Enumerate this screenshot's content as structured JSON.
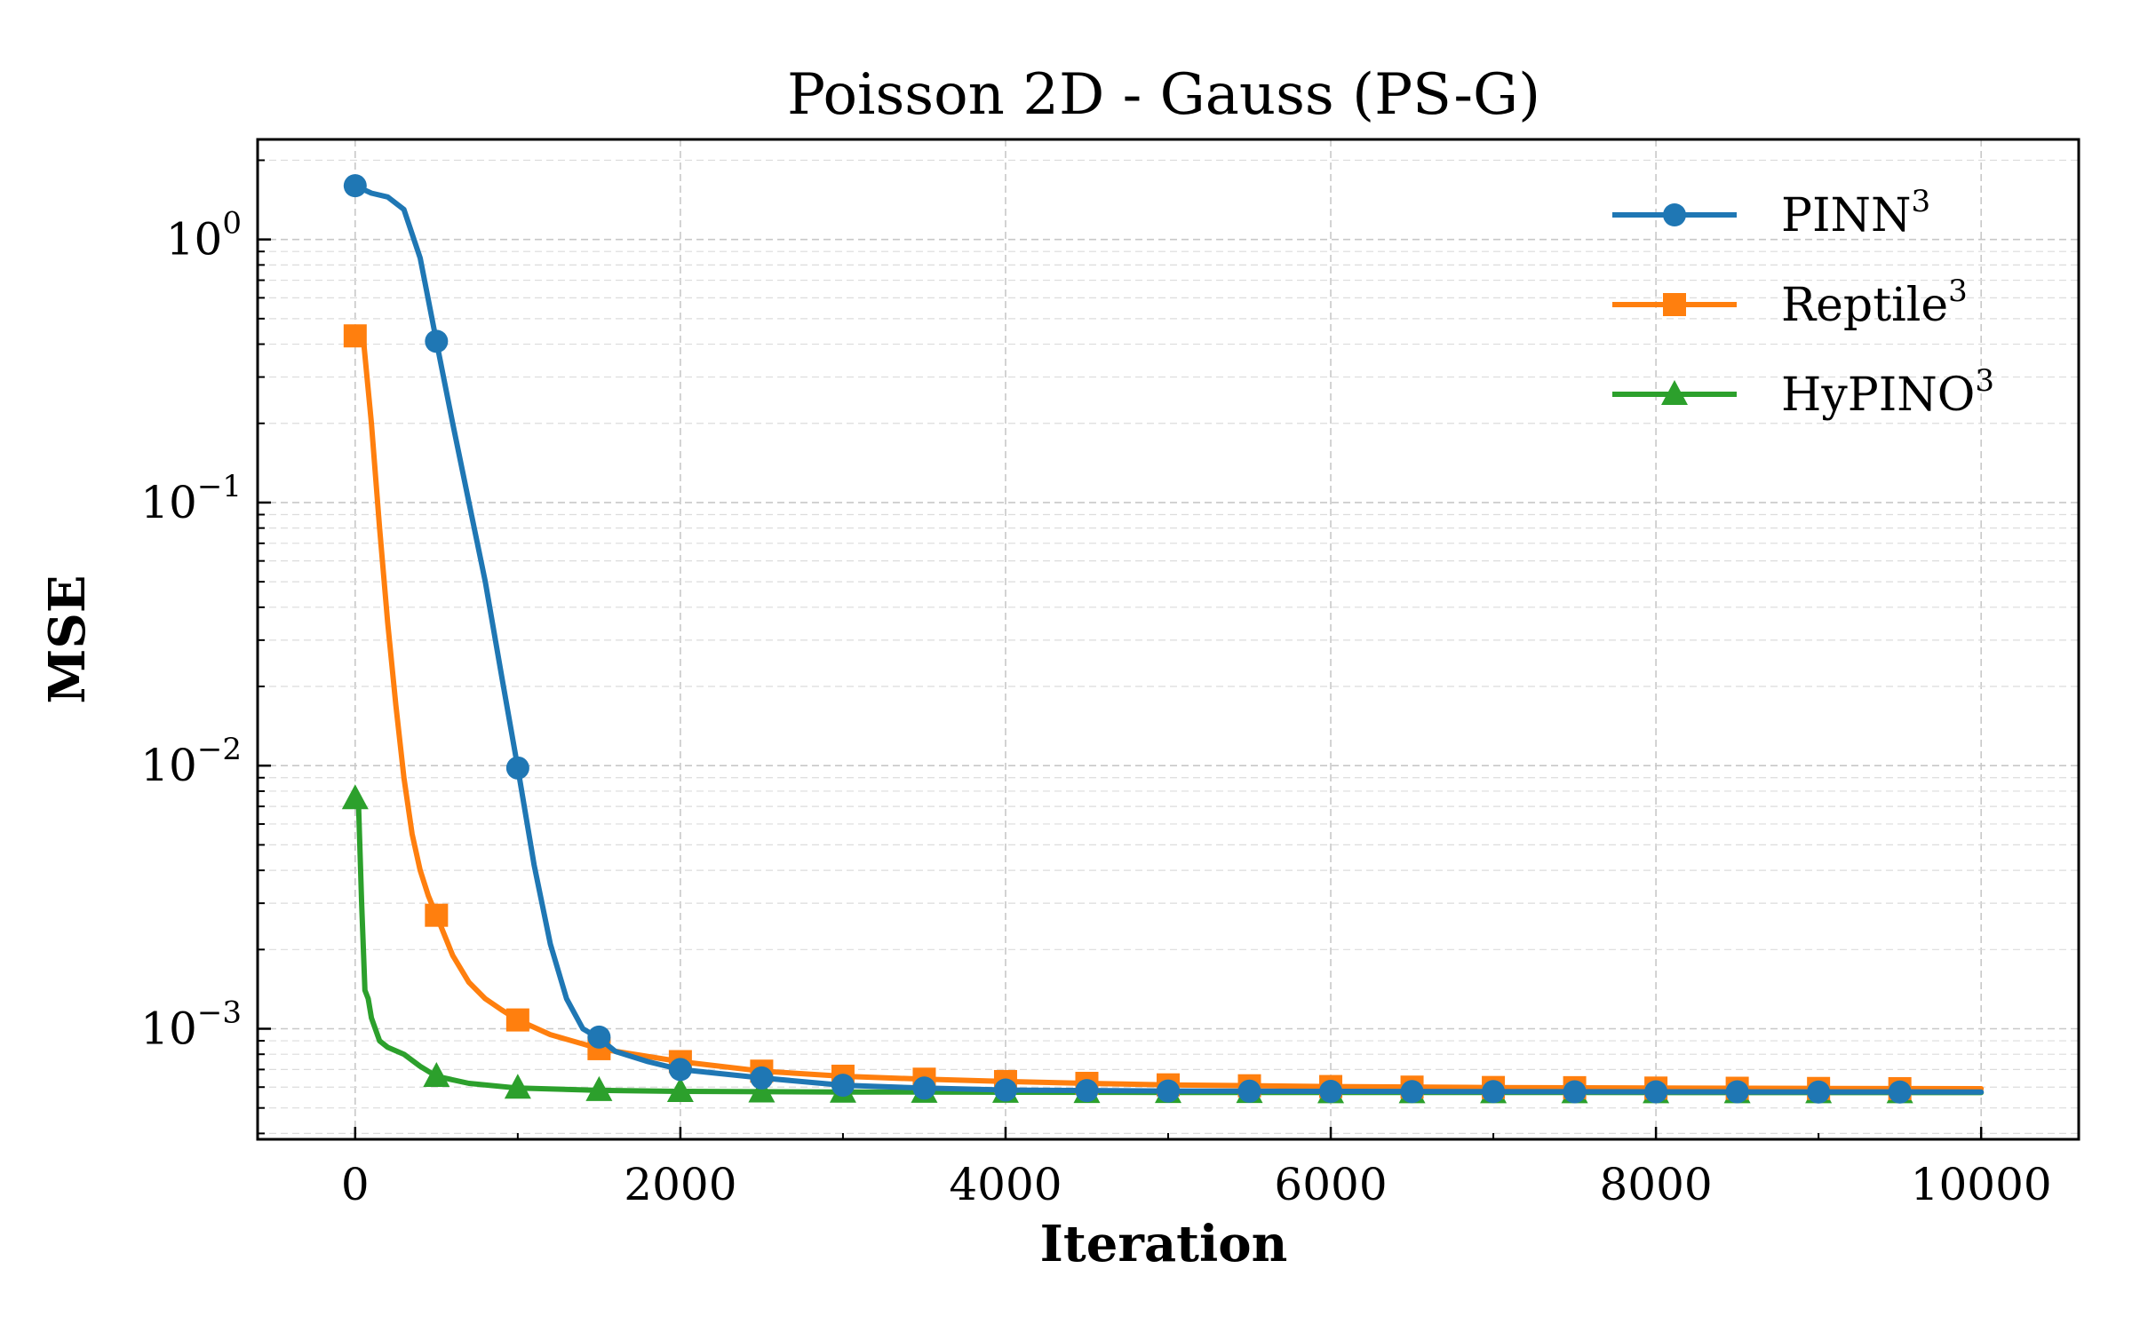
{
  "chart_data": {
    "type": "line",
    "title": "Poisson 2D - Gauss (PS-G)",
    "xlabel": "Iteration",
    "ylabel": "MSE",
    "xlim": [
      -600,
      10600
    ],
    "ylim": [
      0.00038,
      2.4
    ],
    "yscale": "log",
    "grid": true,
    "legend": {
      "placement": "top-right"
    },
    "x_ticks": [
      {
        "value": 0,
        "label": "0"
      },
      {
        "value": 2000,
        "label": "2000"
      },
      {
        "value": 4000,
        "label": "4000"
      },
      {
        "value": 6000,
        "label": "6000"
      },
      {
        "value": 8000,
        "label": "8000"
      },
      {
        "value": 10000,
        "label": "10000"
      }
    ],
    "y_ticks": [
      {
        "value": 1,
        "base": "10",
        "exp": "0"
      },
      {
        "value": 0.1,
        "base": "10",
        "exp": "−1"
      },
      {
        "value": 0.01,
        "base": "10",
        "exp": "−2"
      },
      {
        "value": 0.001,
        "base": "10",
        "exp": "−3"
      }
    ],
    "series": [
      {
        "name": "PINN",
        "name_sup": "3",
        "color": "#1f77b4",
        "marker": "circle",
        "line": [
          [
            0,
            1.6
          ],
          [
            100,
            1.5
          ],
          [
            200,
            1.45
          ],
          [
            300,
            1.3
          ],
          [
            400,
            0.85
          ],
          [
            500,
            0.41
          ],
          [
            600,
            0.2
          ],
          [
            700,
            0.1
          ],
          [
            800,
            0.05
          ],
          [
            900,
            0.022
          ],
          [
            1000,
            0.0098
          ],
          [
            1100,
            0.0042
          ],
          [
            1200,
            0.0021
          ],
          [
            1300,
            0.0013
          ],
          [
            1400,
            0.001
          ],
          [
            1500,
            0.00092
          ],
          [
            1600,
            0.00082
          ],
          [
            1800,
            0.00075
          ],
          [
            2000,
            0.0007
          ],
          [
            2500,
            0.00065
          ],
          [
            3000,
            0.00061
          ],
          [
            3500,
            0.000595
          ],
          [
            4000,
            0.000585
          ],
          [
            5000,
            0.00058
          ],
          [
            6000,
            0.000578
          ],
          [
            8000,
            0.000576
          ],
          [
            10000,
            0.000575
          ]
        ],
        "markers": [
          [
            0,
            1.6
          ],
          [
            500,
            0.41
          ],
          [
            1000,
            0.0098
          ],
          [
            1500,
            0.00093
          ],
          [
            2000,
            0.0007
          ],
          [
            2500,
            0.00065
          ],
          [
            3000,
            0.00061
          ],
          [
            3500,
            0.000595
          ],
          [
            4000,
            0.000585
          ],
          [
            4500,
            0.000582
          ],
          [
            5000,
            0.00058
          ],
          [
            5500,
            0.000579
          ],
          [
            6000,
            0.000578
          ],
          [
            6500,
            0.000577
          ],
          [
            7000,
            0.000577
          ],
          [
            7500,
            0.000576
          ],
          [
            8000,
            0.000576
          ],
          [
            8500,
            0.000576
          ],
          [
            9000,
            0.000575
          ],
          [
            9500,
            0.000575
          ]
        ]
      },
      {
        "name": "Reptile",
        "name_sup": "3",
        "color": "#ff7f0e",
        "marker": "square",
        "line": [
          [
            0,
            0.43
          ],
          [
            50,
            0.42
          ],
          [
            100,
            0.2
          ],
          [
            150,
            0.08
          ],
          [
            200,
            0.035
          ],
          [
            250,
            0.017
          ],
          [
            300,
            0.009
          ],
          [
            350,
            0.0055
          ],
          [
            400,
            0.004
          ],
          [
            450,
            0.0032
          ],
          [
            500,
            0.0027
          ],
          [
            600,
            0.0019
          ],
          [
            700,
            0.0015
          ],
          [
            800,
            0.0013
          ],
          [
            900,
            0.00118
          ],
          [
            1000,
            0.00108
          ],
          [
            1200,
            0.00095
          ],
          [
            1500,
            0.00084
          ],
          [
            2000,
            0.00075
          ],
          [
            2500,
            0.00069
          ],
          [
            3000,
            0.00066
          ],
          [
            3500,
            0.000643
          ],
          [
            4000,
            0.00063
          ],
          [
            4500,
            0.00062
          ],
          [
            5000,
            0.000612
          ],
          [
            6000,
            0.000603
          ],
          [
            7000,
            0.000598
          ],
          [
            8000,
            0.000595
          ],
          [
            9000,
            0.000593
          ],
          [
            10000,
            0.000592
          ]
        ],
        "markers": [
          [
            0,
            0.43
          ],
          [
            500,
            0.0027
          ],
          [
            1000,
            0.00108
          ],
          [
            1500,
            0.00084
          ],
          [
            2000,
            0.00075
          ],
          [
            2500,
            0.00069
          ],
          [
            3000,
            0.00066
          ],
          [
            3500,
            0.000643
          ],
          [
            4000,
            0.00063
          ],
          [
            4500,
            0.00062
          ],
          [
            5000,
            0.000612
          ],
          [
            5500,
            0.000607
          ],
          [
            6000,
            0.000603
          ],
          [
            6500,
            0.0006
          ],
          [
            7000,
            0.000598
          ],
          [
            7500,
            0.000597
          ],
          [
            8000,
            0.000595
          ],
          [
            8500,
            0.000594
          ],
          [
            9000,
            0.000593
          ],
          [
            9500,
            0.000592
          ]
        ]
      },
      {
        "name": "HyPINO",
        "name_sup": "3",
        "color": "#2ca02c",
        "marker": "triangle",
        "line": [
          [
            0,
            0.0075
          ],
          [
            20,
            0.0073
          ],
          [
            40,
            0.003
          ],
          [
            60,
            0.0014
          ],
          [
            80,
            0.0013
          ],
          [
            100,
            0.0011
          ],
          [
            150,
            0.0009
          ],
          [
            200,
            0.00085
          ],
          [
            300,
            0.0008
          ],
          [
            400,
            0.00072
          ],
          [
            500,
            0.00066
          ],
          [
            700,
            0.00062
          ],
          [
            1000,
            0.000595
          ],
          [
            1500,
            0.000583
          ],
          [
            2000,
            0.000578
          ],
          [
            3000,
            0.000575
          ],
          [
            5000,
            0.000573
          ],
          [
            10000,
            0.000572
          ]
        ],
        "markers": [
          [
            0,
            0.0075
          ],
          [
            500,
            0.00066
          ],
          [
            1000,
            0.000595
          ],
          [
            1500,
            0.000583
          ],
          [
            2000,
            0.000578
          ],
          [
            2500,
            0.000576
          ],
          [
            3000,
            0.000575
          ],
          [
            3500,
            0.000574
          ],
          [
            4000,
            0.000574
          ],
          [
            4500,
            0.000573
          ],
          [
            5000,
            0.000573
          ],
          [
            5500,
            0.000573
          ],
          [
            6000,
            0.000572
          ],
          [
            6500,
            0.000572
          ],
          [
            7000,
            0.000572
          ],
          [
            7500,
            0.000572
          ],
          [
            8000,
            0.000572
          ],
          [
            8500,
            0.000572
          ],
          [
            9000,
            0.000572
          ],
          [
            9500,
            0.000572
          ]
        ]
      }
    ]
  }
}
